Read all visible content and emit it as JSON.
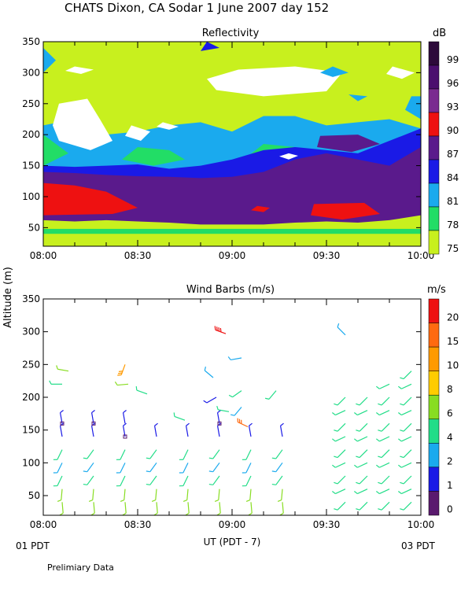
{
  "header": {
    "title": "CHATS Dixon, CA  Sodar    1 June 2007  day 152",
    "bottom_left": "01 PDT",
    "bottom_right": "03 PDT",
    "footer": "Prelimiary Data",
    "y_axis_label": "Altitude (m)",
    "x_axis_label": "UT  (PDT - 7)"
  },
  "chart_data": [
    {
      "type": "heatmap",
      "title": "Reflectivity",
      "colorbar_unit": "dB",
      "colorbar": [
        {
          "label": "99",
          "color": "#2d0a3a"
        },
        {
          "label": "96",
          "color": "#4b0f6e"
        },
        {
          "label": "93",
          "color": "#7a2a90"
        },
        {
          "label": "90",
          "color": "#ee1111"
        },
        {
          "label": "87",
          "color": "#5a1a8c"
        },
        {
          "label": "84",
          "color": "#1a1ae6"
        },
        {
          "label": "81",
          "color": "#1aaaee"
        },
        {
          "label": "78",
          "color": "#22dd66"
        },
        {
          "label": "75",
          "color": "#c8f01e"
        }
      ],
      "x_ticks": [
        "08:00",
        "08:30",
        "09:00",
        "09:30",
        "10:00"
      ],
      "y_ticks": [
        50,
        100,
        150,
        200,
        250,
        300,
        350
      ],
      "ylim": [
        20,
        350
      ],
      "xlim_minutes": [
        0,
        120
      ],
      "palette": {
        "white": "#ffffff",
        "lime": "#c8f01e",
        "green": "#22dd66",
        "cyan": "#1aaaee",
        "blue": "#1a1ae6",
        "purple": "#5a1a8c",
        "red": "#ee1111"
      },
      "layers": [
        {
          "name": "lower-purple",
          "color": "purple",
          "alt_bottom": 55,
          "alt_top": 130
        },
        {
          "name": "blue-layer",
          "color": "blue",
          "alt_bottom": 130,
          "alt_top": 145
        },
        {
          "name": "cyan-band",
          "color": "cyan",
          "alt_bottom": 145,
          "alt_top": 215
        },
        {
          "name": "red-core-early",
          "color": "red",
          "alt_bottom": 78,
          "alt_top": 122,
          "t_start": 0,
          "t_end": 30
        },
        {
          "name": "red-core-late",
          "color": "red",
          "alt_bottom": 63,
          "alt_top": 88,
          "t_start": 85,
          "t_end": 107
        }
      ]
    },
    {
      "type": "scatter",
      "title": "Wind Barbs (m/s)",
      "colorbar_unit": "m/s",
      "colorbar": [
        {
          "label": "20",
          "color": "#ee1111"
        },
        {
          "label": "15",
          "color": "#ff6a10"
        },
        {
          "label": "10",
          "color": "#ff9a00"
        },
        {
          "label": "8",
          "color": "#ffcc00"
        },
        {
          "label": "6",
          "color": "#88dd22"
        },
        {
          "label": "4",
          "color": "#22dd88"
        },
        {
          "label": "2",
          "color": "#1aaaee"
        },
        {
          "label": "1",
          "color": "#1a1ae6"
        },
        {
          "label": "0",
          "color": "#5a1a6e"
        }
      ],
      "x_ticks": [
        "08:00",
        "08:30",
        "09:00",
        "09:30",
        "10:00"
      ],
      "y_ticks": [
        50,
        100,
        150,
        200,
        250,
        300,
        350
      ],
      "ylim": [
        20,
        350
      ],
      "xlim_minutes": [
        0,
        120
      ],
      "barbs": [
        {
          "t": 6,
          "alt": 220,
          "speed": 5,
          "dir": 270
        },
        {
          "t": 8,
          "alt": 240,
          "speed": 6,
          "dir": 280
        },
        {
          "t": 26,
          "alt": 250,
          "speed": 14,
          "dir": 200
        },
        {
          "t": 27,
          "alt": 220,
          "speed": 6,
          "dir": 265
        },
        {
          "t": 33,
          "alt": 205,
          "speed": 5,
          "dir": 290
        },
        {
          "t": 45,
          "alt": 165,
          "speed": 4,
          "dir": 290
        },
        {
          "t": 54,
          "alt": 230,
          "speed": 3,
          "dir": 310
        },
        {
          "t": 55,
          "alt": 200,
          "speed": 1,
          "dir": 240
        },
        {
          "t": 58,
          "alt": 297,
          "speed": 20,
          "dir": 290
        },
        {
          "t": 59,
          "alt": 178,
          "speed": 5,
          "dir": 280
        },
        {
          "t": 63,
          "alt": 210,
          "speed": 4,
          "dir": 235
        },
        {
          "t": 63,
          "alt": 260,
          "speed": 2,
          "dir": 260
        },
        {
          "t": 63,
          "alt": 185,
          "speed": 3,
          "dir": 220
        },
        {
          "t": 65,
          "alt": 155,
          "speed": 16,
          "dir": 295
        },
        {
          "t": 74,
          "alt": 210,
          "speed": 5,
          "dir": 220
        },
        {
          "t": 96,
          "alt": 295,
          "speed": 3,
          "dir": 315
        }
      ],
      "columns": [
        {
          "t": 6,
          "alts": [
            40,
            60,
            80,
            100,
            120,
            140,
            160
          ]
        },
        {
          "t": 16,
          "alts": [
            40,
            60,
            80,
            100,
            120,
            140,
            160
          ]
        },
        {
          "t": 26,
          "alts": [
            40,
            60,
            80,
            100,
            120,
            140,
            160
          ]
        },
        {
          "t": 36,
          "alts": [
            40,
            60,
            80,
            100,
            120,
            140
          ]
        },
        {
          "t": 46,
          "alts": [
            40,
            60,
            80,
            100,
            120,
            140
          ]
        },
        {
          "t": 56,
          "alts": [
            40,
            60,
            80,
            100,
            120,
            140,
            160
          ]
        },
        {
          "t": 66,
          "alts": [
            40,
            60,
            80,
            100,
            120,
            140
          ]
        },
        {
          "t": 76,
          "alts": [
            40,
            60,
            80,
            100,
            120,
            140
          ]
        },
        {
          "t": 96,
          "alts": [
            40,
            60,
            80,
            100,
            120,
            140,
            160,
            180,
            200
          ]
        },
        {
          "t": 103,
          "alts": [
            40,
            60,
            80,
            100,
            120,
            140,
            160,
            180,
            200
          ]
        },
        {
          "t": 110,
          "alts": [
            40,
            60,
            80,
            100,
            120,
            140,
            160,
            180,
            200,
            220
          ]
        },
        {
          "t": 117,
          "alts": [
            40,
            60,
            80,
            100,
            120,
            140,
            160,
            180,
            200,
            220,
            240
          ]
        }
      ]
    }
  ]
}
